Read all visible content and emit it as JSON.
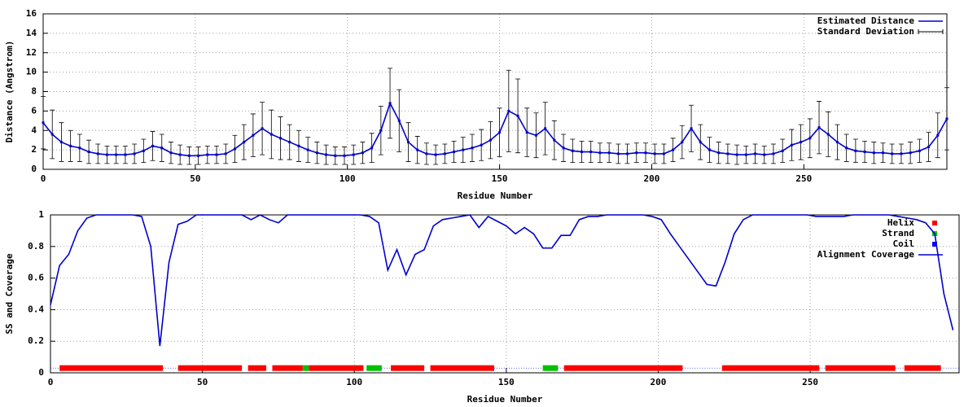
{
  "chart_data": [
    {
      "type": "line",
      "xlabel": "Residue Number",
      "ylabel": "Distance (Angstrom)",
      "xlim": [
        0,
        297
      ],
      "ylim": [
        0,
        16
      ],
      "xticks": [
        0,
        50,
        100,
        150,
        200,
        250
      ],
      "yticks": [
        0,
        2,
        4,
        6,
        8,
        10,
        12,
        14,
        16
      ],
      "grid": true,
      "legend": "upper right",
      "x": [
        0,
        3,
        6,
        9,
        12,
        15,
        18,
        21,
        24,
        27,
        30,
        33,
        36,
        39,
        42,
        45,
        48,
        51,
        54,
        57,
        60,
        63,
        66,
        69,
        72,
        75,
        78,
        81,
        84,
        87,
        90,
        93,
        96,
        99,
        102,
        105,
        108,
        111,
        114,
        117,
        120,
        123,
        126,
        129,
        132,
        135,
        138,
        141,
        144,
        147,
        150,
        153,
        156,
        159,
        162,
        165,
        168,
        171,
        174,
        177,
        180,
        183,
        186,
        189,
        192,
        195,
        198,
        201,
        204,
        207,
        210,
        213,
        216,
        219,
        222,
        225,
        228,
        231,
        234,
        237,
        240,
        243,
        246,
        249,
        252,
        255,
        258,
        261,
        264,
        267,
        270,
        273,
        276,
        279,
        282,
        285,
        288,
        291,
        294,
        297
      ],
      "series": [
        {
          "name": "Estimated Distance",
          "color": "#0000cc",
          "values": [
            4.8,
            3.6,
            2.8,
            2.4,
            2.2,
            1.8,
            1.6,
            1.5,
            1.5,
            1.5,
            1.6,
            1.9,
            2.4,
            2.2,
            1.7,
            1.5,
            1.4,
            1.4,
            1.5,
            1.5,
            1.6,
            2.1,
            2.8,
            3.5,
            4.2,
            3.6,
            3.2,
            2.8,
            2.4,
            2.0,
            1.7,
            1.5,
            1.4,
            1.4,
            1.5,
            1.7,
            2.2,
            4.0,
            6.8,
            5.0,
            2.8,
            2.0,
            1.6,
            1.5,
            1.6,
            1.8,
            2.0,
            2.2,
            2.5,
            3.0,
            3.8,
            6.0,
            5.5,
            3.8,
            3.5,
            4.2,
            3.0,
            2.2,
            1.9,
            1.8,
            1.8,
            1.7,
            1.7,
            1.6,
            1.6,
            1.7,
            1.7,
            1.6,
            1.6,
            2.0,
            2.8,
            4.2,
            2.8,
            2.0,
            1.7,
            1.6,
            1.5,
            1.5,
            1.6,
            1.5,
            1.6,
            1.9,
            2.5,
            2.8,
            3.2,
            4.3,
            3.6,
            2.8,
            2.2,
            1.9,
            1.8,
            1.7,
            1.7,
            1.6,
            1.6,
            1.7,
            1.9,
            2.3,
            3.5,
            5.2
          ]
        }
      ],
      "error_bars": {
        "name": "Standard Deviation",
        "color": "#000000",
        "values": [
          2.7,
          2.5,
          2.0,
          1.6,
          1.4,
          1.2,
          1.0,
          0.9,
          0.9,
          0.9,
          1.0,
          1.2,
          1.5,
          1.4,
          1.1,
          1.0,
          0.9,
          0.9,
          0.9,
          0.9,
          1.0,
          1.4,
          1.8,
          2.2,
          2.7,
          2.5,
          2.2,
          1.8,
          1.6,
          1.3,
          1.1,
          1.0,
          0.9,
          0.9,
          1.0,
          1.1,
          1.5,
          2.5,
          3.6,
          3.2,
          2.0,
          1.4,
          1.1,
          1.0,
          1.0,
          1.1,
          1.3,
          1.4,
          1.6,
          1.9,
          2.5,
          4.2,
          3.8,
          2.5,
          2.3,
          2.7,
          2.0,
          1.4,
          1.2,
          1.1,
          1.1,
          1.0,
          1.0,
          1.0,
          1.0,
          1.0,
          1.0,
          1.0,
          1.0,
          1.2,
          1.7,
          2.4,
          1.8,
          1.3,
          1.1,
          1.0,
          1.0,
          0.9,
          1.0,
          0.9,
          1.0,
          1.2,
          1.6,
          1.8,
          2.0,
          2.7,
          2.3,
          1.8,
          1.4,
          1.2,
          1.1,
          1.1,
          1.0,
          1.0,
          1.0,
          1.1,
          1.2,
          1.5,
          2.3,
          3.2
        ]
      }
    },
    {
      "type": "line",
      "xlabel": "Residue Number",
      "ylabel": "SS and Coverage",
      "xlim": [
        0,
        299
      ],
      "ylim": [
        0,
        1
      ],
      "xticks": [
        0,
        50,
        100,
        150,
        200,
        250
      ],
      "yticks": [
        0,
        0.2,
        0.4,
        0.6,
        0.8,
        1
      ],
      "grid": true,
      "legend": "upper right",
      "x": [
        0,
        3,
        6,
        9,
        12,
        15,
        18,
        21,
        24,
        27,
        30,
        33,
        36,
        39,
        42,
        45,
        48,
        51,
        54,
        57,
        60,
        63,
        66,
        69,
        72,
        75,
        78,
        81,
        84,
        87,
        90,
        93,
        96,
        99,
        102,
        105,
        108,
        111,
        114,
        117,
        120,
        123,
        126,
        129,
        132,
        135,
        138,
        141,
        144,
        147,
        150,
        153,
        156,
        159,
        162,
        165,
        168,
        171,
        174,
        177,
        180,
        183,
        186,
        189,
        192,
        195,
        198,
        201,
        204,
        207,
        210,
        213,
        216,
        219,
        222,
        225,
        228,
        231,
        234,
        237,
        240,
        243,
        246,
        249,
        252,
        255,
        258,
        261,
        264,
        267,
        270,
        273,
        276,
        279,
        282,
        285,
        288,
        291,
        294,
        297
      ],
      "ss_series": [
        {
          "name": "Helix",
          "color": "#ff0000",
          "y": 0.03,
          "ranges": [
            [
              3,
              37
            ],
            [
              42,
              63
            ],
            [
              65,
              71
            ],
            [
              73,
              83
            ],
            [
              85,
              103
            ],
            [
              112,
              123
            ],
            [
              125,
              146
            ],
            [
              169,
              208
            ],
            [
              221,
              253
            ],
            [
              255,
              278
            ],
            [
              281,
              293
            ]
          ]
        },
        {
          "name": "Strand",
          "color": "#00c000",
          "y": 0.03,
          "ranges": [
            [
              83,
              85
            ],
            [
              104,
              109
            ],
            [
              162,
              167
            ]
          ]
        },
        {
          "name": "Coil",
          "color": "#0000ff",
          "y": 0.03,
          "ranges": [
            [
              0,
              3
            ],
            [
              37,
              42
            ],
            [
              109,
              112
            ],
            [
              146,
              162
            ],
            [
              167,
              169
            ],
            [
              208,
              221
            ],
            [
              253,
              255
            ],
            [
              278,
              281
            ],
            [
              293,
              299
            ]
          ]
        }
      ],
      "series": [
        {
          "name": "Alignment Coverage",
          "color": "#0000cc",
          "values": [
            0.43,
            0.68,
            0.75,
            0.9,
            0.98,
            1.0,
            1.0,
            1.0,
            1.0,
            1.0,
            0.99,
            0.8,
            0.17,
            0.7,
            0.94,
            0.96,
            1.0,
            1.0,
            1.0,
            1.0,
            1.0,
            1.0,
            0.97,
            1.0,
            0.97,
            0.95,
            1.0,
            1.0,
            1.0,
            1.0,
            1.0,
            1.0,
            1.0,
            1.0,
            1.0,
            0.99,
            0.95,
            0.65,
            0.78,
            0.62,
            0.75,
            0.78,
            0.93,
            0.97,
            0.98,
            0.99,
            1.0,
            0.92,
            0.99,
            0.96,
            0.93,
            0.88,
            0.92,
            0.88,
            0.79,
            0.79,
            0.87,
            0.87,
            0.97,
            0.99,
            0.99,
            1.0,
            1.0,
            1.0,
            1.0,
            1.0,
            0.99,
            0.97,
            0.88,
            0.8,
            0.72,
            0.64,
            0.56,
            0.55,
            0.7,
            0.88,
            0.97,
            1.0,
            1.0,
            1.0,
            1.0,
            1.0,
            1.0,
            1.0,
            0.99,
            0.99,
            0.99,
            0.99,
            1.0,
            1.0,
            1.0,
            1.0,
            1.0,
            0.99,
            0.98,
            0.97,
            0.95,
            0.88,
            0.5,
            0.27
          ]
        }
      ]
    }
  ]
}
